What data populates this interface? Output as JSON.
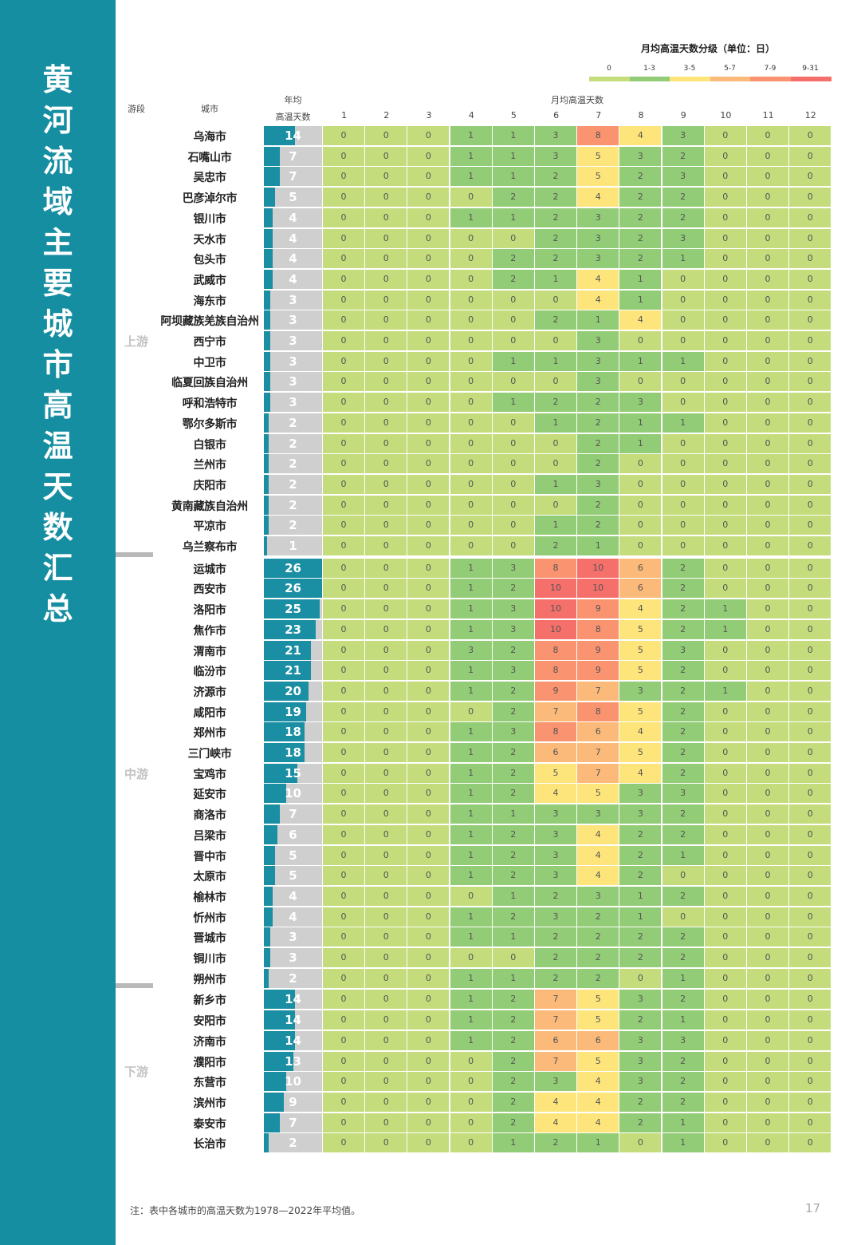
{
  "sidebar": {
    "title": "黄河流域主要城市高温天数汇总"
  },
  "legend": {
    "title": "月均高温天数分级（单位：日）",
    "bins": [
      {
        "label": "0",
        "color": "#c5dc7c"
      },
      {
        "label": "1-3",
        "color": "#93cc76"
      },
      {
        "label": "3-5",
        "color": "#fde57b"
      },
      {
        "label": "5-7",
        "color": "#fbba79"
      },
      {
        "label": "7-9",
        "color": "#f99370"
      },
      {
        "label": "9-31",
        "color": "#f56f6b"
      }
    ]
  },
  "headers": {
    "segment": "游段",
    "city": "城市",
    "annual_line1": "年均",
    "annual_line2": "高温天数",
    "monthly": "月均高温天数",
    "months": [
      "1",
      "2",
      "3",
      "4",
      "5",
      "6",
      "7",
      "8",
      "9",
      "10",
      "11",
      "12"
    ]
  },
  "segments": [
    {
      "label": "上游"
    },
    {
      "label": "中游"
    },
    {
      "label": "下游"
    }
  ],
  "footer": {
    "note": "注：表中各城市的高温天数为1978—2022年平均值。",
    "page_number": "17"
  },
  "chart_data": {
    "type": "heatmap",
    "bar_max": 26,
    "rows": [
      {
        "segment": "上游",
        "city": "乌海市",
        "annual": 14,
        "months": [
          0,
          0,
          0,
          1,
          1,
          3,
          8,
          4,
          3,
          0,
          0,
          0
        ]
      },
      {
        "segment": "上游",
        "city": "石嘴山市",
        "annual": 7,
        "months": [
          0,
          0,
          0,
          1,
          1,
          3,
          5,
          3,
          2,
          0,
          0,
          0
        ]
      },
      {
        "segment": "上游",
        "city": "吴忠市",
        "annual": 7,
        "months": [
          0,
          0,
          0,
          1,
          1,
          2,
          5,
          2,
          3,
          0,
          0,
          0
        ]
      },
      {
        "segment": "上游",
        "city": "巴彦淖尔市",
        "annual": 5,
        "months": [
          0,
          0,
          0,
          0,
          2,
          2,
          4,
          2,
          2,
          0,
          0,
          0
        ]
      },
      {
        "segment": "上游",
        "city": "银川市",
        "annual": 4,
        "months": [
          0,
          0,
          0,
          1,
          1,
          2,
          3,
          2,
          2,
          0,
          0,
          0
        ]
      },
      {
        "segment": "上游",
        "city": "天水市",
        "annual": 4,
        "months": [
          0,
          0,
          0,
          0,
          0,
          2,
          3,
          2,
          3,
          0,
          0,
          0
        ]
      },
      {
        "segment": "上游",
        "city": "包头市",
        "annual": 4,
        "months": [
          0,
          0,
          0,
          0,
          2,
          2,
          3,
          2,
          1,
          0,
          0,
          0
        ]
      },
      {
        "segment": "上游",
        "city": "武威市",
        "annual": 4,
        "months": [
          0,
          0,
          0,
          0,
          2,
          1,
          4,
          1,
          0,
          0,
          0,
          0
        ]
      },
      {
        "segment": "上游",
        "city": "海东市",
        "annual": 3,
        "months": [
          0,
          0,
          0,
          0,
          0,
          0,
          4,
          1,
          0,
          0,
          0,
          0
        ]
      },
      {
        "segment": "上游",
        "city": "阿坝藏族羌族自治州",
        "annual": 3,
        "months": [
          0,
          0,
          0,
          0,
          0,
          2,
          1,
          4,
          0,
          0,
          0,
          0
        ]
      },
      {
        "segment": "上游",
        "city": "西宁市",
        "annual": 3,
        "months": [
          0,
          0,
          0,
          0,
          0,
          0,
          3,
          0,
          0,
          0,
          0,
          0
        ]
      },
      {
        "segment": "上游",
        "city": "中卫市",
        "annual": 3,
        "months": [
          0,
          0,
          0,
          0,
          1,
          1,
          3,
          1,
          1,
          0,
          0,
          0
        ]
      },
      {
        "segment": "上游",
        "city": "临夏回族自治州",
        "annual": 3,
        "months": [
          0,
          0,
          0,
          0,
          0,
          0,
          3,
          0,
          0,
          0,
          0,
          0
        ]
      },
      {
        "segment": "上游",
        "city": "呼和浩特市",
        "annual": 3,
        "months": [
          0,
          0,
          0,
          0,
          1,
          2,
          2,
          3,
          0,
          0,
          0,
          0
        ]
      },
      {
        "segment": "上游",
        "city": "鄂尔多斯市",
        "annual": 2,
        "months": [
          0,
          0,
          0,
          0,
          0,
          1,
          2,
          1,
          1,
          0,
          0,
          0
        ]
      },
      {
        "segment": "上游",
        "city": "白银市",
        "annual": 2,
        "months": [
          0,
          0,
          0,
          0,
          0,
          0,
          2,
          1,
          0,
          0,
          0,
          0
        ]
      },
      {
        "segment": "上游",
        "city": "兰州市",
        "annual": 2,
        "months": [
          0,
          0,
          0,
          0,
          0,
          0,
          2,
          0,
          0,
          0,
          0,
          0
        ]
      },
      {
        "segment": "上游",
        "city": "庆阳市",
        "annual": 2,
        "months": [
          0,
          0,
          0,
          0,
          0,
          1,
          3,
          0,
          0,
          0,
          0,
          0
        ]
      },
      {
        "segment": "上游",
        "city": "黄南藏族自治州",
        "annual": 2,
        "months": [
          0,
          0,
          0,
          0,
          0,
          0,
          2,
          0,
          0,
          0,
          0,
          0
        ]
      },
      {
        "segment": "上游",
        "city": "平凉市",
        "annual": 2,
        "months": [
          0,
          0,
          0,
          0,
          0,
          1,
          2,
          0,
          0,
          0,
          0,
          0
        ]
      },
      {
        "segment": "上游",
        "city": "乌兰察布市",
        "annual": 1,
        "months": [
          0,
          0,
          0,
          0,
          0,
          2,
          1,
          0,
          0,
          0,
          0,
          0
        ]
      },
      {
        "segment": "中游",
        "city": "运城市",
        "annual": 26,
        "months": [
          0,
          0,
          0,
          1,
          3,
          8,
          10,
          6,
          2,
          0,
          0,
          0
        ]
      },
      {
        "segment": "中游",
        "city": "西安市",
        "annual": 26,
        "months": [
          0,
          0,
          0,
          1,
          2,
          10,
          10,
          6,
          2,
          0,
          0,
          0
        ]
      },
      {
        "segment": "中游",
        "city": "洛阳市",
        "annual": 25,
        "months": [
          0,
          0,
          0,
          1,
          3,
          10,
          9,
          4,
          2,
          1,
          0,
          0
        ]
      },
      {
        "segment": "中游",
        "city": "焦作市",
        "annual": 23,
        "months": [
          0,
          0,
          0,
          1,
          3,
          10,
          8,
          5,
          2,
          1,
          0,
          0
        ]
      },
      {
        "segment": "中游",
        "city": "渭南市",
        "annual": 21,
        "months": [
          0,
          0,
          0,
          3,
          2,
          8,
          9,
          5,
          3,
          0,
          0,
          0
        ]
      },
      {
        "segment": "中游",
        "city": "临汾市",
        "annual": 21,
        "months": [
          0,
          0,
          0,
          1,
          3,
          8,
          9,
          5,
          2,
          0,
          0,
          0
        ]
      },
      {
        "segment": "中游",
        "city": "济源市",
        "annual": 20,
        "months": [
          0,
          0,
          0,
          1,
          2,
          9,
          7,
          3,
          2,
          1,
          0,
          0
        ]
      },
      {
        "segment": "中游",
        "city": "咸阳市",
        "annual": 19,
        "months": [
          0,
          0,
          0,
          0,
          2,
          7,
          8,
          5,
          2,
          0,
          0,
          0
        ]
      },
      {
        "segment": "中游",
        "city": "郑州市",
        "annual": 18,
        "months": [
          0,
          0,
          0,
          1,
          3,
          8,
          6,
          4,
          2,
          0,
          0,
          0
        ]
      },
      {
        "segment": "中游",
        "city": "三门峡市",
        "annual": 18,
        "months": [
          0,
          0,
          0,
          1,
          2,
          6,
          7,
          5,
          2,
          0,
          0,
          0
        ]
      },
      {
        "segment": "中游",
        "city": "宝鸡市",
        "annual": 15,
        "months": [
          0,
          0,
          0,
          1,
          2,
          5,
          7,
          4,
          2,
          0,
          0,
          0
        ]
      },
      {
        "segment": "中游",
        "city": "延安市",
        "annual": 10,
        "months": [
          0,
          0,
          0,
          1,
          2,
          4,
          5,
          3,
          3,
          0,
          0,
          0
        ]
      },
      {
        "segment": "中游",
        "city": "商洛市",
        "annual": 7,
        "months": [
          0,
          0,
          0,
          1,
          1,
          3,
          3,
          3,
          2,
          0,
          0,
          0
        ]
      },
      {
        "segment": "中游",
        "city": "吕梁市",
        "annual": 6,
        "months": [
          0,
          0,
          0,
          1,
          2,
          3,
          4,
          2,
          2,
          0,
          0,
          0
        ]
      },
      {
        "segment": "中游",
        "city": "晋中市",
        "annual": 5,
        "months": [
          0,
          0,
          0,
          1,
          2,
          3,
          4,
          2,
          1,
          0,
          0,
          0
        ]
      },
      {
        "segment": "中游",
        "city": "太原市",
        "annual": 5,
        "months": [
          0,
          0,
          0,
          1,
          2,
          3,
          4,
          2,
          0,
          0,
          0,
          0
        ]
      },
      {
        "segment": "中游",
        "city": "榆林市",
        "annual": 4,
        "months": [
          0,
          0,
          0,
          0,
          1,
          2,
          3,
          1,
          2,
          0,
          0,
          0
        ]
      },
      {
        "segment": "中游",
        "city": "忻州市",
        "annual": 4,
        "months": [
          0,
          0,
          0,
          1,
          2,
          3,
          2,
          1,
          0,
          0,
          0,
          0
        ]
      },
      {
        "segment": "中游",
        "city": "晋城市",
        "annual": 3,
        "months": [
          0,
          0,
          0,
          1,
          1,
          2,
          2,
          2,
          2,
          0,
          0,
          0
        ]
      },
      {
        "segment": "中游",
        "city": "铜川市",
        "annual": 3,
        "months": [
          0,
          0,
          0,
          0,
          0,
          2,
          2,
          2,
          2,
          0,
          0,
          0
        ]
      },
      {
        "segment": "中游",
        "city": "朔州市",
        "annual": 2,
        "months": [
          0,
          0,
          0,
          1,
          1,
          2,
          2,
          0,
          1,
          0,
          0,
          0
        ]
      },
      {
        "segment": "下游",
        "city": "新乡市",
        "annual": 14,
        "months": [
          0,
          0,
          0,
          1,
          2,
          7,
          5,
          3,
          2,
          0,
          0,
          0
        ]
      },
      {
        "segment": "下游",
        "city": "安阳市",
        "annual": 14,
        "months": [
          0,
          0,
          0,
          1,
          2,
          7,
          5,
          2,
          1,
          0,
          0,
          0
        ]
      },
      {
        "segment": "下游",
        "city": "济南市",
        "annual": 14,
        "months": [
          0,
          0,
          0,
          1,
          2,
          6,
          6,
          3,
          3,
          0,
          0,
          0
        ]
      },
      {
        "segment": "下游",
        "city": "濮阳市",
        "annual": 13,
        "months": [
          0,
          0,
          0,
          0,
          2,
          7,
          5,
          3,
          2,
          0,
          0,
          0
        ]
      },
      {
        "segment": "下游",
        "city": "东营市",
        "annual": 10,
        "months": [
          0,
          0,
          0,
          0,
          2,
          3,
          4,
          3,
          2,
          0,
          0,
          0
        ]
      },
      {
        "segment": "下游",
        "city": "滨州市",
        "annual": 9,
        "months": [
          0,
          0,
          0,
          0,
          2,
          4,
          4,
          2,
          2,
          0,
          0,
          0
        ]
      },
      {
        "segment": "下游",
        "city": "泰安市",
        "annual": 7,
        "months": [
          0,
          0,
          0,
          0,
          2,
          4,
          4,
          2,
          1,
          0,
          0,
          0
        ]
      },
      {
        "segment": "下游",
        "city": "长治市",
        "annual": 2,
        "months": [
          0,
          0,
          0,
          0,
          1,
          2,
          1,
          0,
          1,
          0,
          0,
          0
        ]
      }
    ]
  }
}
